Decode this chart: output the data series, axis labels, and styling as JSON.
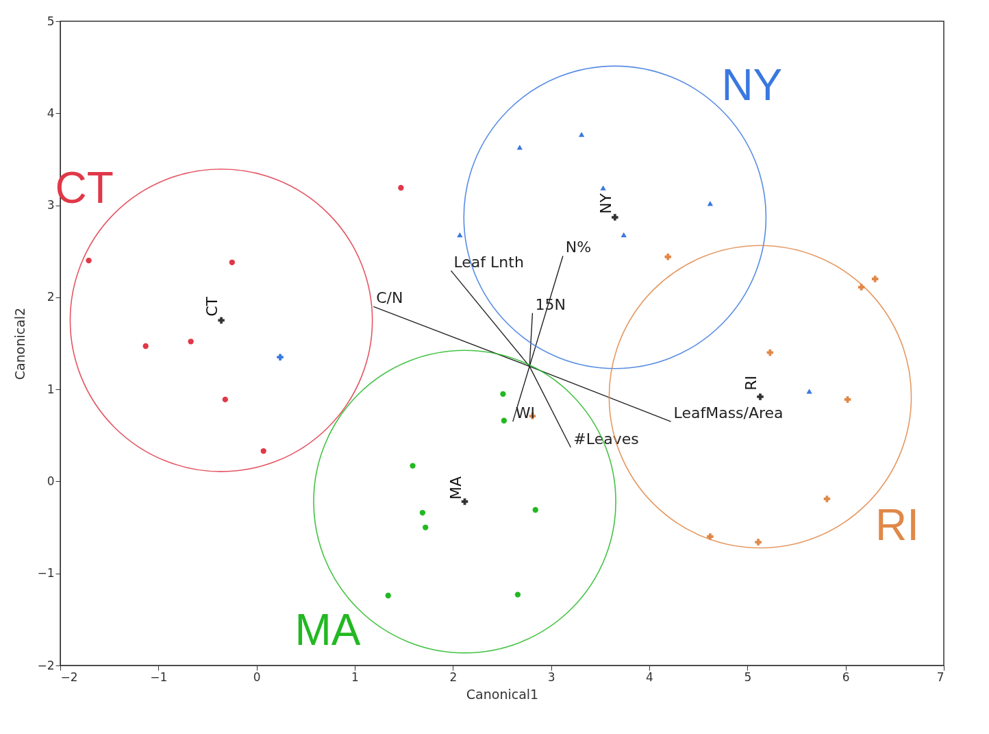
{
  "chart_data": {
    "type": "scatter",
    "xlabel": "Canonical1",
    "ylabel": "Canonical2",
    "xlim": [
      -2,
      7
    ],
    "ylim": [
      -2,
      5
    ],
    "xticks": [
      -2,
      -1,
      0,
      1,
      2,
      3,
      4,
      5,
      6,
      7
    ],
    "yticks": [
      -2,
      -1,
      0,
      1,
      2,
      3,
      4,
      5
    ],
    "grid": false,
    "series": [
      {
        "type": "scatter",
        "name": "CT",
        "marker": "circle",
        "color": "#e03848",
        "x": [
          -1.71,
          -0.25,
          -1.13,
          -0.67,
          -0.32,
          0.07,
          1.47
        ],
        "values": [
          2.4,
          2.38,
          1.47,
          1.52,
          0.89,
          0.33,
          3.19
        ]
      },
      {
        "type": "scatter",
        "name": "NY",
        "marker": "triangle",
        "color": "#3a78e0",
        "x": [
          2.68,
          3.31,
          3.53,
          4.62,
          3.74,
          2.07,
          5.63
        ],
        "values": [
          3.63,
          3.77,
          3.19,
          3.02,
          2.68,
          2.68,
          0.98
        ]
      },
      {
        "type": "scatter",
        "name": "MA",
        "marker": "circle",
        "color": "#22b822",
        "x": [
          2.51,
          2.52,
          1.59,
          1.69,
          1.72,
          2.84,
          1.34,
          2.66
        ],
        "values": [
          0.95,
          0.66,
          0.17,
          -0.34,
          -0.5,
          -0.31,
          -1.24,
          -1.23
        ]
      },
      {
        "type": "scatter",
        "name": "RI",
        "marker": "cross",
        "color": "#e08848",
        "x": [
          4.19,
          6.16,
          6.3,
          5.23,
          6.02,
          2.81,
          5.81,
          4.62,
          5.11
        ],
        "values": [
          2.44,
          2.11,
          2.2,
          1.4,
          0.89,
          0.71,
          -0.19,
          -0.6,
          -0.66
        ]
      },
      {
        "type": "scatter",
        "marker": "cross",
        "color": "#3a78e0",
        "x": [
          0.24
        ],
        "values": [
          1.35
        ]
      },
      {
        "type": "scatter",
        "marker": "cross",
        "color": "#333333",
        "x": [
          -0.36,
          3.65,
          2.12,
          5.13
        ],
        "values": [
          1.75,
          2.87,
          -0.22,
          0.92
        ],
        "value_labels": [
          "CT",
          "NY",
          "MA",
          "RI"
        ]
      },
      {
        "type": "line",
        "name": "C/N",
        "color": "#222222",
        "x": [
          2.78,
          1.19
        ],
        "values": [
          1.25,
          1.9
        ]
      },
      {
        "type": "line",
        "name": "Leaf Lnth",
        "color": "#222222",
        "x": [
          2.78,
          1.98
        ],
        "values": [
          1.25,
          2.29
        ]
      },
      {
        "type": "line",
        "name": "N%",
        "color": "#222222",
        "x": [
          2.78,
          3.12
        ],
        "values": [
          1.25,
          2.45
        ]
      },
      {
        "type": "line",
        "name": "15N",
        "color": "#222222",
        "x": [
          2.78,
          2.81
        ],
        "values": [
          1.25,
          1.83
        ]
      },
      {
        "type": "line",
        "name": "LeafMass/Area",
        "color": "#222222",
        "x": [
          2.78,
          4.22
        ],
        "values": [
          1.25,
          0.65
        ]
      },
      {
        "type": "line",
        "name": "#Leaves",
        "color": "#222222",
        "x": [
          2.78,
          3.2
        ],
        "values": [
          1.25,
          0.37
        ]
      },
      {
        "type": "line",
        "name": "WI",
        "color": "#222222",
        "x": [
          2.78,
          2.61
        ],
        "values": [
          1.25,
          0.65
        ]
      }
    ]
  }
}
